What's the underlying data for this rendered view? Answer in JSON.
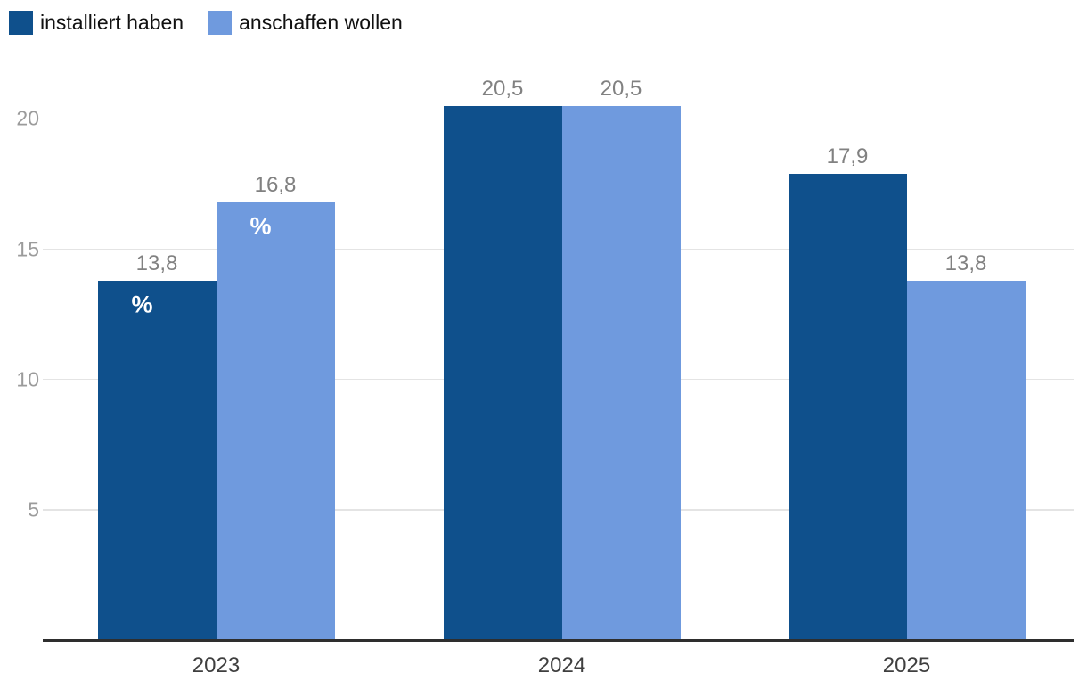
{
  "legend": {
    "items": [
      {
        "label": "installiert haben",
        "color": "#0F508C"
      },
      {
        "label": "anschaffen wollen",
        "color": "#6F9ADE"
      }
    ]
  },
  "chart_data": {
    "type": "bar",
    "title": "",
    "categories": [
      "2023",
      "2024",
      "2025"
    ],
    "series": [
      {
        "name": "installiert haben",
        "color": "#0F508C",
        "values": [
          13.8,
          20.5,
          17.9
        ],
        "labels": [
          "13,8",
          "20,5",
          "17,9"
        ]
      },
      {
        "name": "anschaffen wollen",
        "color": "#6F9ADE",
        "values": [
          16.8,
          20.5,
          13.8
        ],
        "labels": [
          "16,8",
          "20,5",
          "13,8"
        ]
      }
    ],
    "unit_label": "%",
    "unit_label_category_index": 0,
    "xlabel": "",
    "ylabel": "",
    "yticks": [
      5,
      10,
      15,
      20
    ],
    "ylim": [
      0,
      22
    ],
    "grid": "horizontal",
    "legend_position": "top-left",
    "style": {
      "grid_color": "#E4E4E4",
      "axis_line_color": "#2E2E2E",
      "ytick_color": "#9B9B9B",
      "xtick_color": "#3F3F3F",
      "value_label_color": "#818181",
      "unit_label_color": "#FFFFFF",
      "background": "#FFFFFF"
    }
  }
}
